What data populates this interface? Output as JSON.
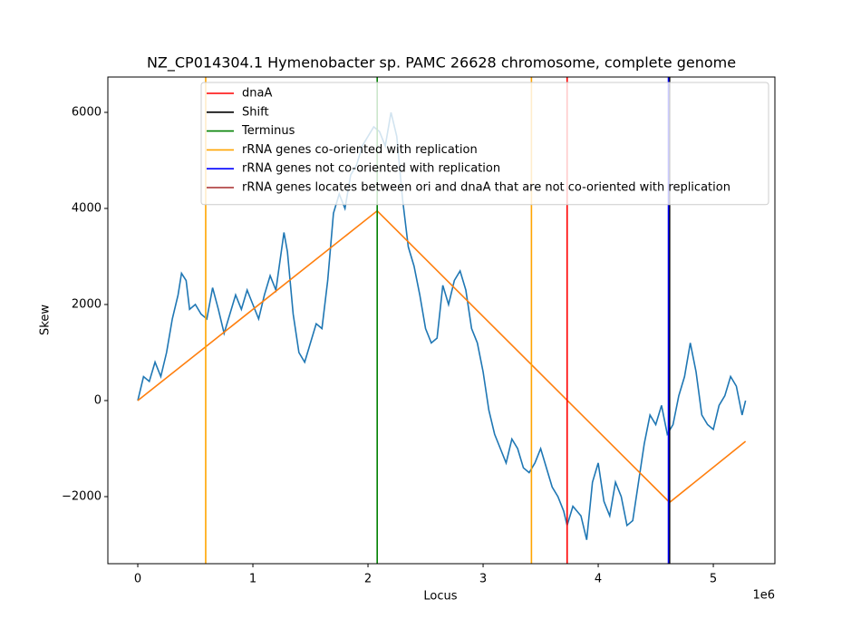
{
  "chart_data": {
    "type": "line",
    "title": "NZ_CP014304.1 Hymenobacter sp. PAMC 26628 chromosome, complete genome",
    "xlabel": "Locus",
    "ylabel": "Skew",
    "x_offset_label": "1e6",
    "xlim": [
      -260000,
      5535000
    ],
    "ylim": [
      -3396,
      6736
    ],
    "xticks": [
      {
        "value": 0,
        "label": "0"
      },
      {
        "value": 1000000,
        "label": "1"
      },
      {
        "value": 2000000,
        "label": "2"
      },
      {
        "value": 3000000,
        "label": "3"
      },
      {
        "value": 4000000,
        "label": "4"
      },
      {
        "value": 5000000,
        "label": "5"
      }
    ],
    "yticks": [
      {
        "value": -2000,
        "label": "−2000"
      },
      0,
      2000,
      4000,
      6000
    ],
    "series": [
      {
        "color": "#1f77b4",
        "x": [
          0,
          50000,
          100000,
          150000,
          200000,
          250000,
          300000,
          350000,
          380000,
          420000,
          450000,
          500000,
          550000,
          600000,
          650000,
          700000,
          750000,
          800000,
          850000,
          900000,
          950000,
          1000000,
          1050000,
          1100000,
          1150000,
          1200000,
          1270000,
          1300000,
          1350000,
          1400000,
          1450000,
          1500000,
          1550000,
          1600000,
          1650000,
          1700000,
          1750000,
          1800000,
          1850000,
          1900000,
          1950000,
          2000000,
          2050000,
          2100000,
          2150000,
          2200000,
          2250000,
          2300000,
          2350000,
          2400000,
          2450000,
          2500000,
          2550000,
          2600000,
          2650000,
          2700000,
          2750000,
          2800000,
          2850000,
          2900000,
          2950000,
          3000000,
          3050000,
          3100000,
          3150000,
          3200000,
          3250000,
          3300000,
          3350000,
          3400000,
          3450000,
          3500000,
          3550000,
          3600000,
          3650000,
          3700000,
          3730000,
          3780000,
          3850000,
          3900000,
          3950000,
          4000000,
          4050000,
          4100000,
          4150000,
          4200000,
          4250000,
          4300000,
          4350000,
          4400000,
          4450000,
          4500000,
          4550000,
          4600000,
          4650000,
          4700000,
          4750000,
          4800000,
          4850000,
          4900000,
          4950000,
          5000000,
          5050000,
          5100000,
          5150000,
          5200000,
          5250000,
          5280000
        ],
        "values": [
          0,
          500,
          400,
          800,
          500,
          1000,
          1700,
          2200,
          2650,
          2500,
          1900,
          2000,
          1800,
          1700,
          2350,
          1900,
          1400,
          1800,
          2200,
          1900,
          2300,
          2000,
          1700,
          2200,
          2600,
          2300,
          3500,
          3100,
          1800,
          1000,
          800,
          1200,
          1600,
          1500,
          2500,
          3900,
          4300,
          4000,
          4700,
          4900,
          5300,
          5500,
          5700,
          5600,
          5300,
          6000,
          5500,
          4200,
          3200,
          2800,
          2200,
          1500,
          1200,
          1300,
          2400,
          2000,
          2500,
          2700,
          2300,
          1500,
          1200,
          600,
          -200,
          -700,
          -1000,
          -1300,
          -800,
          -1000,
          -1400,
          -1500,
          -1300,
          -1000,
          -1400,
          -1800,
          -2000,
          -2300,
          -2600,
          -2200,
          -2400,
          -2900,
          -1700,
          -1300,
          -2100,
          -2400,
          -1700,
          -2000,
          -2600,
          -2500,
          -1700,
          -900,
          -300,
          -500,
          -100,
          -700,
          -500,
          100,
          500,
          1200,
          600,
          -300,
          -500,
          -600,
          -100,
          100,
          500,
          300,
          -300,
          0
        ]
      },
      {
        "color": "#ff7f0e",
        "x": [
          0,
          2080000,
          4620000,
          5280000
        ],
        "values": [
          0,
          3950,
          -2120,
          -850
        ]
      }
    ],
    "vlines": [
      {
        "name": "dnaA",
        "color": "#ff0000",
        "x": [
          3730000
        ]
      },
      {
        "name": "Shift",
        "color": "#000000",
        "x": [
          4620000
        ]
      },
      {
        "name": "Terminus",
        "color": "#008000",
        "x": [
          2080000
        ]
      },
      {
        "name": "rRNA genes co-oriented with replication",
        "color": "#ffa500",
        "x": [
          590000,
          3420000
        ]
      },
      {
        "name": "rRNA genes not co-oriented with replication",
        "color": "#0000ff",
        "x": [
          4610000
        ]
      },
      {
        "name": "rRNA genes locates between ori and dnaA that are not co-oriented with replication",
        "color": "#a52a2a",
        "x": []
      }
    ]
  }
}
